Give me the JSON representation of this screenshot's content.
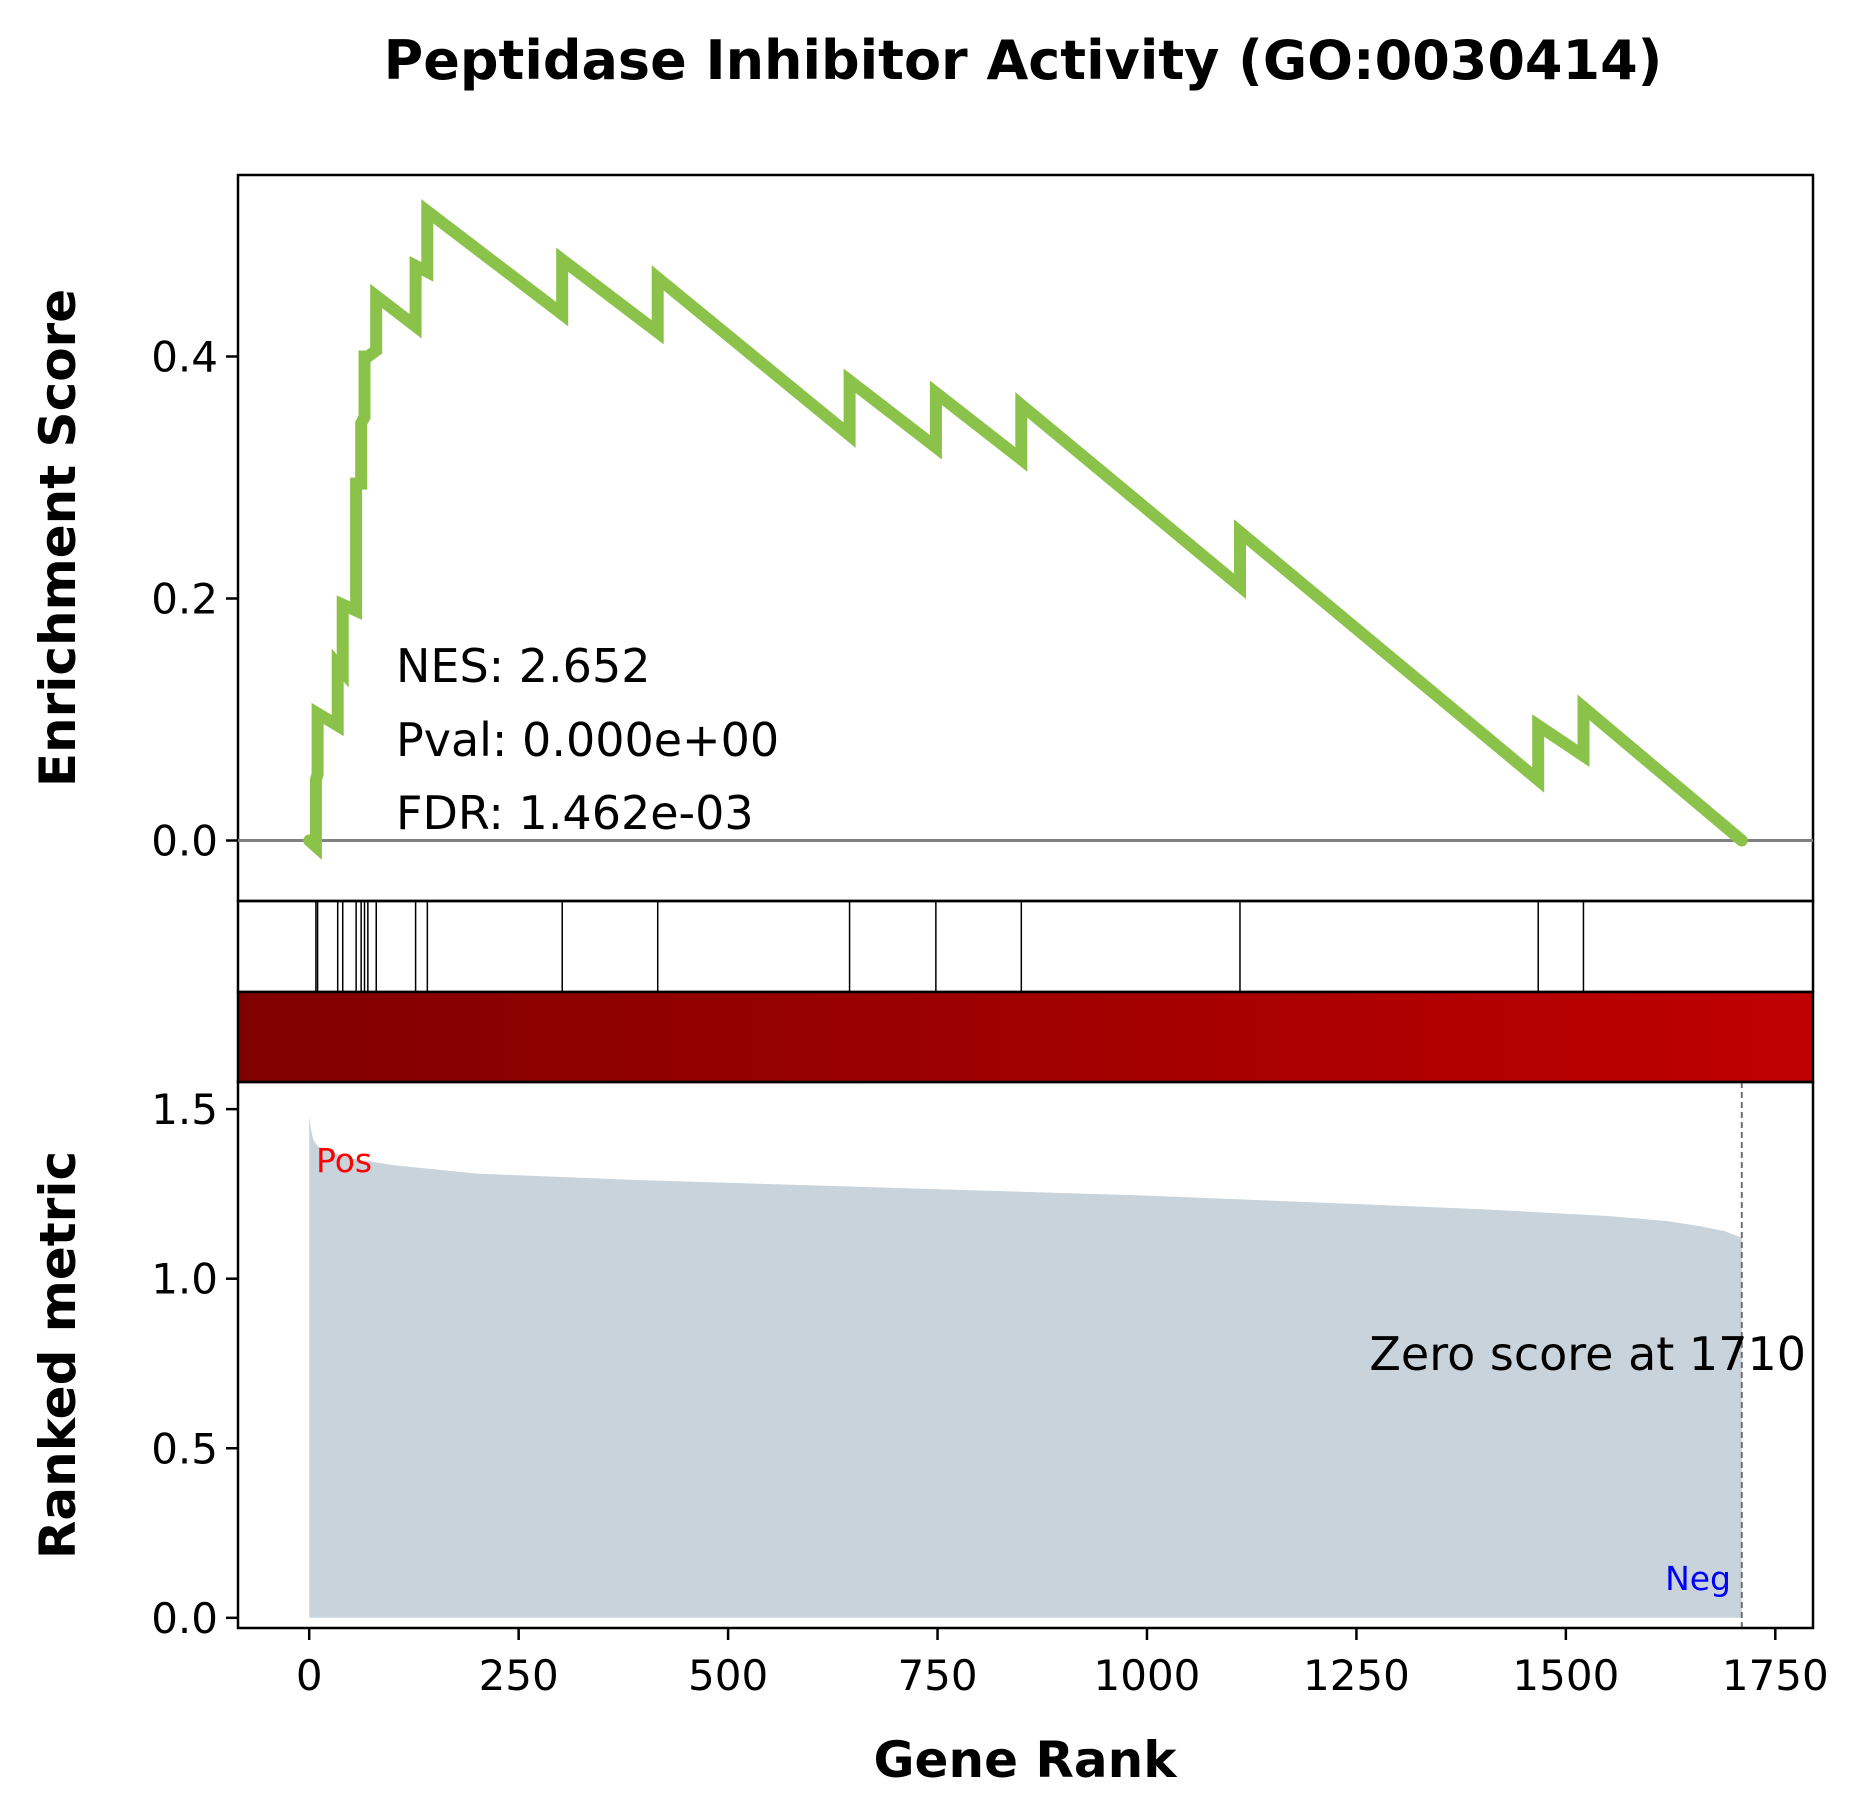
{
  "chart_data": {
    "type": "line",
    "title": "Peptidase Inhibitor Activity (GO:0030414)",
    "xlabel": "Gene Rank",
    "xlim": [
      -85,
      1795
    ],
    "x_ticks": [
      0,
      250,
      500,
      750,
      1000,
      1250,
      1500,
      1750
    ],
    "x_tick_labels": [
      "0",
      "250",
      "500",
      "750",
      "1000",
      "1250",
      "1500",
      "1750"
    ],
    "enrichment": {
      "ylabel": "Enrichment Score",
      "ylim": [
        -0.05,
        0.55
      ],
      "y_ticks": [
        0.0,
        0.2,
        0.4
      ],
      "y_tick_labels": [
        "0.0",
        "0.2",
        "0.4"
      ],
      "color": "#8bc34a",
      "baseline": 0.0,
      "x": [
        0,
        8,
        8,
        10,
        10,
        34,
        34,
        40,
        40,
        56,
        56,
        62,
        62,
        66,
        66,
        70,
        70,
        80,
        80,
        127,
        127,
        141,
        141,
        302,
        302,
        416,
        416,
        645,
        645,
        748,
        748,
        850,
        850,
        1111,
        1111,
        1467,
        1467,
        1521,
        1521,
        1710
      ],
      "y": [
        0.0,
        -0.005,
        0.05,
        0.055,
        0.105,
        0.095,
        0.145,
        0.14,
        0.195,
        0.19,
        0.295,
        0.295,
        0.345,
        0.35,
        0.4,
        0.4,
        0.4,
        0.405,
        0.45,
        0.425,
        0.475,
        0.47,
        0.52,
        0.435,
        0.48,
        0.42,
        0.465,
        0.335,
        0.38,
        0.325,
        0.37,
        0.315,
        0.36,
        0.21,
        0.255,
        0.05,
        0.095,
        0.07,
        0.11,
        0.0
      ],
      "stats": {
        "nes": "NES: 2.652",
        "pval": "Pval: 0.000e+00",
        "fdr": "FDR: 1.462e-03"
      }
    },
    "hits": {
      "positions": [
        8,
        10,
        34,
        40,
        56,
        62,
        66,
        70,
        80,
        127,
        141,
        302,
        416,
        645,
        748,
        850,
        1111,
        1467,
        1521
      ]
    },
    "heatmap": {
      "color_start": "#800000",
      "color_end": "#bf0000"
    },
    "ranked_metric": {
      "ylabel": "Ranked metric",
      "ylim": [
        -0.03,
        1.58
      ],
      "y_ticks": [
        0.0,
        0.5,
        1.0,
        1.5
      ],
      "y_tick_labels": [
        "0.0",
        "0.5",
        "1.0",
        "1.5"
      ],
      "fill_color": "#c8d3dc",
      "x": [
        0,
        2,
        5,
        10,
        20,
        30,
        50,
        100,
        200,
        400,
        600,
        800,
        1000,
        1200,
        1400,
        1550,
        1620,
        1660,
        1690,
        1700,
        1710
      ],
      "y": [
        1.48,
        1.44,
        1.41,
        1.39,
        1.38,
        1.37,
        1.355,
        1.335,
        1.31,
        1.29,
        1.275,
        1.26,
        1.245,
        1.225,
        1.205,
        1.185,
        1.17,
        1.155,
        1.14,
        1.13,
        1.12
      ],
      "zero_score_rank": 1710,
      "zero_note": "Zero score at 1710",
      "pos_label": "Pos",
      "neg_label": "Neg",
      "pos_color": "#ff0000",
      "neg_color": "#0000ff"
    }
  }
}
